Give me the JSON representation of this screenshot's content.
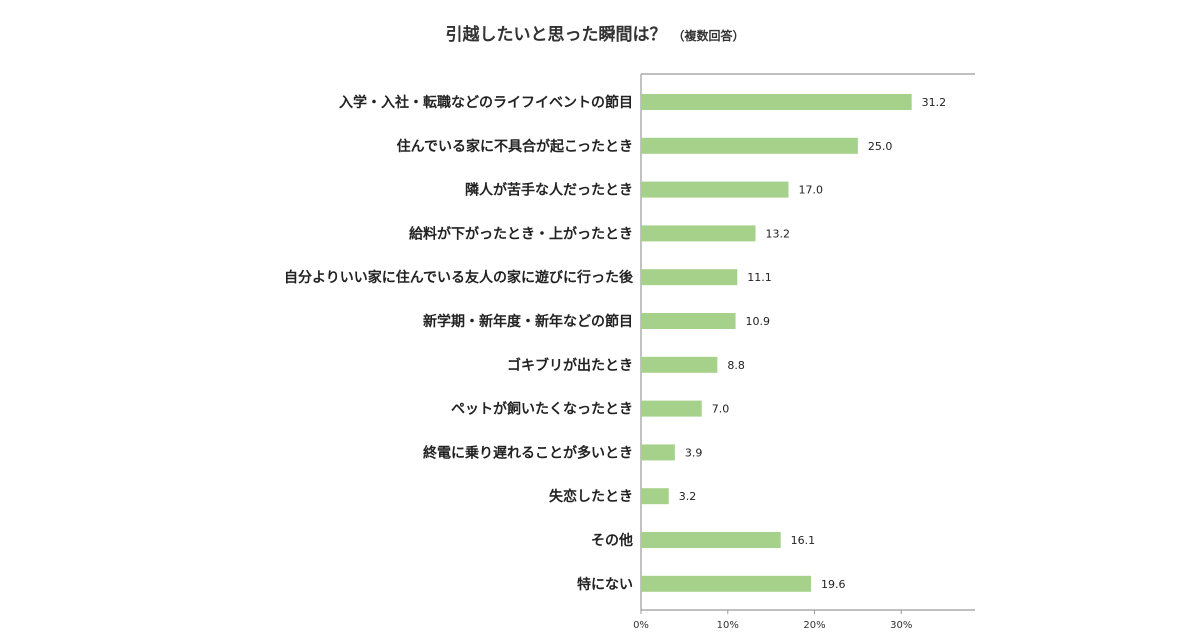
{
  "chart_data": {
    "type": "bar",
    "orientation": "horizontal",
    "title": "引越したいと思った瞬間は？",
    "subtitle": "（複数回答）",
    "categories": [
      "入学・入社・転職などのライフイベントの節目",
      "住んでいる家に不具合が起こったとき",
      "隣人が苦手な人だったとき",
      "給料が下がったとき・上がったとき",
      "自分よりいい家に住んでいる友人の家に遊びに行った後",
      "新学期・新年度・新年などの節目",
      "ゴキブリが出たとき",
      "ペットが飼いたくなったとき",
      "終電に乗り遅れることが多いとき",
      "失恋したとき",
      "その他",
      "特にない"
    ],
    "values": [
      31.2,
      25.0,
      17.0,
      13.2,
      11.1,
      10.9,
      8.8,
      7.0,
      3.9,
      3.2,
      16.1,
      19.6
    ],
    "value_labels": [
      "31.2",
      "25.0",
      "17.0",
      "13.2",
      "11.1",
      "10.9",
      "8.8",
      "7.0",
      "3.9",
      "3.2",
      "16.1",
      "19.6"
    ],
    "xticks": [
      0,
      10,
      20,
      30
    ],
    "xtick_labels": [
      "0%",
      "10%",
      "20%",
      "30%"
    ],
    "xlim": [
      0,
      38.5
    ],
    "xlabel": "",
    "ylabel": "",
    "grid": false,
    "legend": "none",
    "bar_color": "#a6d18b",
    "axis_color": "#9a9a9a"
  }
}
